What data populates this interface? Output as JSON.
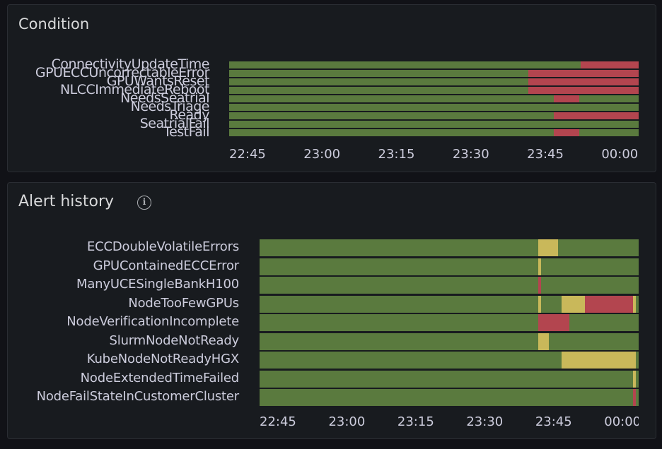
{
  "colors": {
    "ok": "#5a7a3e",
    "firing": "#b3454f",
    "pending": "#c9b85a",
    "panel_bg": "#181b1f",
    "page_bg": "#111217"
  },
  "condition_panel": {
    "title": "Condition",
    "rows": [
      {
        "label": "ConnectivityUpdateTime",
        "segments": [
          {
            "start": 0.859,
            "end": 1.0,
            "state": "firing"
          }
        ]
      },
      {
        "label": "GPUECCUncorrectableError",
        "segments": [
          {
            "start": 0.731,
            "end": 1.0,
            "state": "firing"
          }
        ]
      },
      {
        "label": "GPUWantsReset",
        "segments": [
          {
            "start": 0.731,
            "end": 1.0,
            "state": "firing"
          }
        ]
      },
      {
        "label": "NLCCImmediateReboot",
        "segments": [
          {
            "start": 0.731,
            "end": 1.0,
            "state": "firing"
          }
        ]
      },
      {
        "label": "NeedsSeatrial",
        "segments": [
          {
            "start": 0.793,
            "end": 0.855,
            "state": "firing"
          }
        ]
      },
      {
        "label": "NeedsTriage",
        "segments": []
      },
      {
        "label": "Ready",
        "segments": [
          {
            "start": 0.793,
            "end": 1.0,
            "state": "firing"
          }
        ]
      },
      {
        "label": "SeatrialFail",
        "segments": []
      },
      {
        "label": "TestFail",
        "segments": [
          {
            "start": 0.793,
            "end": 0.855,
            "state": "firing"
          }
        ]
      }
    ],
    "x_axis": [
      "22:45",
      "23:00",
      "23:15",
      "23:30",
      "23:45",
      "00:00"
    ]
  },
  "alert_panel": {
    "title": "Alert history",
    "info_icon": "info-circle-icon",
    "rows": [
      {
        "label": "ECCDoubleVolatileErrors",
        "segments": [
          {
            "start": 0.735,
            "end": 0.788,
            "state": "pending"
          }
        ]
      },
      {
        "label": "GPUContainedECCError",
        "segments": [
          {
            "start": 0.735,
            "end": 0.742,
            "state": "pending"
          }
        ]
      },
      {
        "label": "ManyUCESingleBankH100",
        "segments": [
          {
            "start": 0.735,
            "end": 0.742,
            "state": "firing"
          }
        ]
      },
      {
        "label": "NodeTooFewGPUs",
        "segments": [
          {
            "start": 0.735,
            "end": 0.742,
            "state": "pending"
          },
          {
            "start": 0.797,
            "end": 0.859,
            "state": "pending"
          },
          {
            "start": 0.859,
            "end": 0.985,
            "state": "firing"
          },
          {
            "start": 0.985,
            "end": 0.993,
            "state": "pending"
          }
        ]
      },
      {
        "label": "NodeVerificationIncomplete",
        "segments": [
          {
            "start": 0.735,
            "end": 0.817,
            "state": "firing"
          }
        ]
      },
      {
        "label": "SlurmNodeNotReady",
        "segments": [
          {
            "start": 0.735,
            "end": 0.764,
            "state": "pending"
          }
        ]
      },
      {
        "label": "KubeNodeNotReadyHGX",
        "segments": [
          {
            "start": 0.797,
            "end": 0.993,
            "state": "pending"
          }
        ]
      },
      {
        "label": "NodeExtendedTimeFailed",
        "segments": [
          {
            "start": 0.985,
            "end": 0.993,
            "state": "pending"
          }
        ]
      },
      {
        "label": "NodeFailStateInCustomerCluster",
        "segments": [
          {
            "start": 0.985,
            "end": 0.993,
            "state": "firing"
          }
        ]
      }
    ],
    "x_axis": [
      "22:45",
      "23:00",
      "23:15",
      "23:30",
      "23:45",
      "00:00"
    ]
  }
}
